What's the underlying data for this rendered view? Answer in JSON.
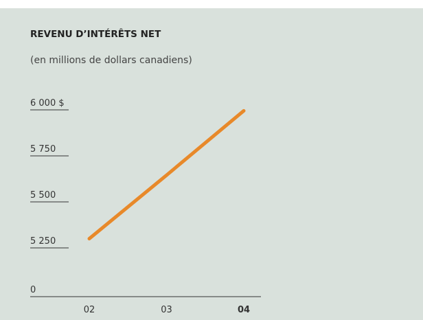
{
  "chart_data": {
    "type": "line",
    "title": "REVENU D’INTÉRÊTS NET",
    "subtitle": "(en millions de dollars canadiens)",
    "categories": [
      "02",
      "03",
      "04"
    ],
    "series": [
      {
        "name": "Revenu d’intérêts net",
        "color": "#e8892a",
        "values": [
          5300,
          5645,
          5995
        ]
      }
    ],
    "ylim": [
      5250,
      6000
    ],
    "yticks": [
      0,
      {
        "value": 5250,
        "label": "5 250"
      },
      {
        "value": 5500,
        "label": "5 500"
      },
      {
        "value": 5750,
        "label": "5 750"
      },
      {
        "value": 6000,
        "label": "6 000 $"
      }
    ],
    "axis_break": true,
    "highlight_index": 2,
    "grid": false
  }
}
